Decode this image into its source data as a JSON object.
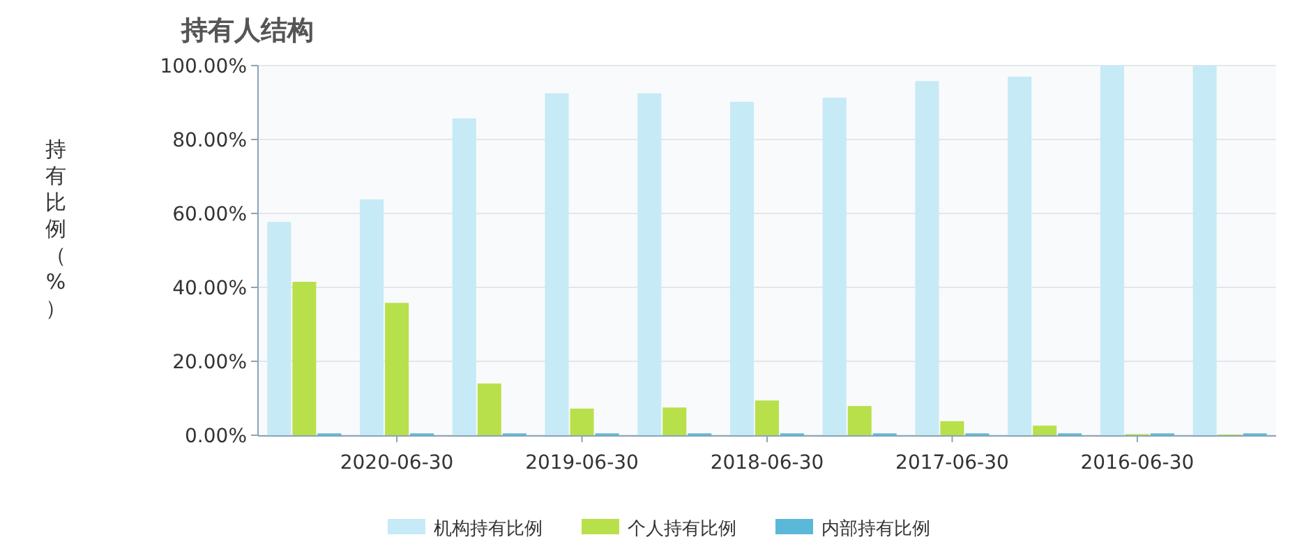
{
  "chart_data": {
    "type": "bar",
    "title": "持有人结构",
    "ylabel": "持有比例（%）",
    "categories": [
      null,
      "2020-06-30",
      null,
      "2019-06-30",
      null,
      "2018-06-30",
      null,
      "2017-06-30",
      null,
      "2016-06-30",
      null
    ],
    "series": [
      {
        "name": "机构持有比例",
        "color": "#c6eaf6",
        "values": [
          57.7,
          63.8,
          85.7,
          92.5,
          92.5,
          90.2,
          91.3,
          95.8,
          97,
          100,
          100
        ]
      },
      {
        "name": "个人持有比例",
        "color": "#b8e04a",
        "values": [
          41.5,
          35.8,
          14,
          7.2,
          7.5,
          9.4,
          7.9,
          3.8,
          2.6,
          0.3,
          0.2
        ]
      },
      {
        "name": "内部持有比例",
        "color": "#5bb8d8",
        "values": [
          0.5,
          0.5,
          0.5,
          0.5,
          0.5,
          0.5,
          0.5,
          0.5,
          0.5,
          0.5,
          0.5
        ]
      }
    ],
    "ylim": [
      0,
      100
    ],
    "yticks": [
      {
        "value": 0,
        "label": "0.00%"
      },
      {
        "value": 20,
        "label": "20.00%"
      },
      {
        "value": 40,
        "label": "40.00%"
      },
      {
        "value": 60,
        "label": "60.00%"
      },
      {
        "value": 80,
        "label": "80.00%"
      },
      {
        "value": 100,
        "label": "100.00%"
      }
    ],
    "grid": "y",
    "legend": "bottom"
  }
}
